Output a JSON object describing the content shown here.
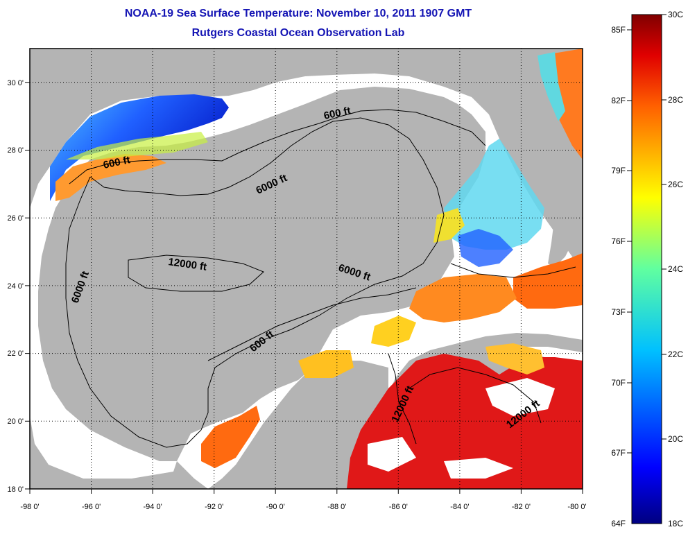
{
  "title": {
    "line1": "NOAA-19 Sea Surface Temperature:  November 10, 2011 1907 GMT",
    "line2": "Rutgers Coastal Ocean Observation Lab"
  },
  "map": {
    "lon_range": [
      -98,
      -80
    ],
    "lat_range": [
      18,
      31
    ],
    "lon_ticks": [
      "-98 0'",
      "-96 0'",
      "-94 0'",
      "-92 0'",
      "-90 0'",
      "-88 0'",
      "-86 0'",
      "-84 0'",
      "-82 0'",
      "-80 0'"
    ],
    "lat_ticks": [
      "18 0'",
      "20 0'",
      "22 0'",
      "24 0'",
      "26 0'",
      "28 0'",
      "30 0'"
    ],
    "grid": "dotted",
    "land_color": "#b4b4b4",
    "cloud_color": "#ffffff"
  },
  "contours": [
    {
      "label": "600 ft"
    },
    {
      "label": "600 ft"
    },
    {
      "label": "6000 ft"
    },
    {
      "label": "12000 ft"
    },
    {
      "label": "6000 ft"
    },
    {
      "label": "6000 ft"
    },
    {
      "label": "600 ft"
    },
    {
      "label": "12000 ft"
    },
    {
      "label": "12000 ft"
    }
  ],
  "colorbar": {
    "fahrenheit": [
      "85F",
      "82F",
      "79F",
      "76F",
      "73F",
      "70F",
      "67F",
      "64F"
    ],
    "celsius": [
      "30C",
      "28C",
      "26C",
      "24C",
      "22C",
      "20C",
      "18C"
    ],
    "range_c": [
      18,
      30
    ],
    "colormap": "jet"
  }
}
